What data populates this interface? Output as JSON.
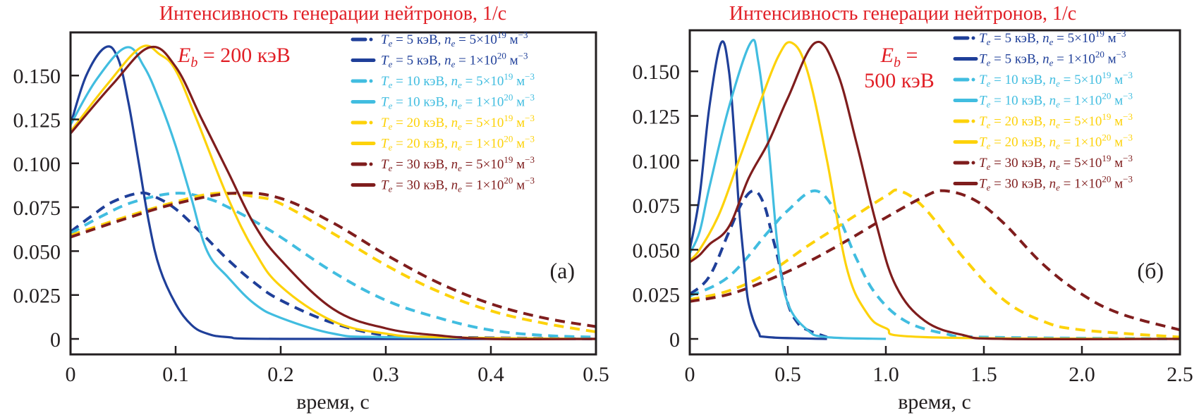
{
  "chart_data": [
    {
      "type": "line",
      "panel_label": "(а)",
      "title": "Интенсивность генерации нейтронов, 1/с",
      "annotation": "E_b = 200 кэВ",
      "annotation_parts": {
        "symbol": "E",
        "subscript": "b",
        "rest": " = 200 кэВ"
      },
      "xlabel": "время, с",
      "ylabel": "",
      "xlim": [
        0,
        0.5
      ],
      "ylim": [
        -0.017,
        0.175
      ],
      "xticks": [
        0,
        0.1,
        0.2,
        0.3,
        0.4,
        0.5
      ],
      "xtick_labels": [
        "0",
        "0.1",
        "0.2",
        "0.3",
        "0.4",
        "0.5"
      ],
      "yticks": [
        0,
        0.025,
        0.05,
        0.075,
        0.1,
        0.125,
        0.15
      ],
      "ytick_labels": [
        "0",
        "0.025",
        "0.050",
        "0.075",
        "0.100",
        "0.125",
        "0.150"
      ],
      "grid": false,
      "legend_position": "top-right",
      "series": [
        {
          "name": "Te = 5 кэВ, ne = 5×10^19 м^-3",
          "T": "5",
          "n_mant": "5",
          "n_exp": "19",
          "color": "#1f3f99",
          "dash": true,
          "x": [
            0,
            0.02,
            0.04,
            0.065,
            0.08,
            0.1,
            0.125,
            0.15,
            0.175,
            0.2,
            0.25,
            0.3,
            0.35,
            0.5
          ],
          "y": [
            0.061,
            0.07,
            0.078,
            0.083,
            0.081,
            0.074,
            0.06,
            0.045,
            0.032,
            0.022,
            0.009,
            0.002,
            0.001,
            0.0
          ]
        },
        {
          "name": "Te = 5 кэВ, ne = 1×10^20 м^-3",
          "T": "5",
          "n_mant": "1",
          "n_exp": "20",
          "color": "#1f3f99",
          "dash": false,
          "x": [
            0,
            0.015,
            0.033,
            0.045,
            0.055,
            0.065,
            0.075,
            0.085,
            0.1,
            0.115,
            0.13,
            0.15,
            0.2,
            0.5
          ],
          "y": [
            0.122,
            0.15,
            0.166,
            0.16,
            0.135,
            0.1,
            0.065,
            0.04,
            0.02,
            0.008,
            0.003,
            0.001,
            0.0,
            0.0
          ]
        },
        {
          "name": "Te = 10 кэВ, ne = 5×10^19 м^-3",
          "T": "10",
          "n_mant": "5",
          "n_exp": "19",
          "color": "#41bde0",
          "dash": true,
          "x": [
            0,
            0.03,
            0.06,
            0.1,
            0.13,
            0.15,
            0.175,
            0.2,
            0.25,
            0.3,
            0.35,
            0.4,
            0.45,
            0.5
          ],
          "y": [
            0.06,
            0.07,
            0.078,
            0.083,
            0.08,
            0.075,
            0.067,
            0.058,
            0.038,
            0.022,
            0.012,
            0.005,
            0.002,
            0.001
          ]
        },
        {
          "name": "Te = 10 кэВ, ne = 1×10^20 м^-3",
          "T": "10",
          "n_mant": "1",
          "n_exp": "20",
          "color": "#41bde0",
          "dash": false,
          "x": [
            0,
            0.025,
            0.053,
            0.07,
            0.085,
            0.1,
            0.115,
            0.13,
            0.15,
            0.175,
            0.2,
            0.25,
            0.3,
            0.5
          ],
          "y": [
            0.122,
            0.148,
            0.166,
            0.155,
            0.135,
            0.11,
            0.08,
            0.05,
            0.035,
            0.02,
            0.012,
            0.003,
            0.001,
            0.0
          ]
        },
        {
          "name": "Te = 20 кэВ, ne = 5×10^19 м^-3",
          "T": "20",
          "n_mant": "5",
          "n_exp": "19",
          "color": "#fdd20a",
          "dash": true,
          "x": [
            0,
            0.05,
            0.1,
            0.14,
            0.175,
            0.2,
            0.25,
            0.3,
            0.35,
            0.4,
            0.45,
            0.5
          ],
          "y": [
            0.059,
            0.069,
            0.078,
            0.083,
            0.081,
            0.077,
            0.06,
            0.042,
            0.027,
            0.016,
            0.009,
            0.004
          ]
        },
        {
          "name": "Te = 20 кэВ, ne = 1×10^20 м^-3",
          "T": "20",
          "n_mant": "1",
          "n_exp": "20",
          "color": "#fdd20a",
          "dash": false,
          "x": [
            0,
            0.035,
            0.067,
            0.085,
            0.1,
            0.12,
            0.15,
            0.175,
            0.2,
            0.25,
            0.3,
            0.35,
            0.5
          ],
          "y": [
            0.118,
            0.145,
            0.166,
            0.162,
            0.153,
            0.125,
            0.08,
            0.05,
            0.03,
            0.01,
            0.003,
            0.001,
            0.0
          ]
        },
        {
          "name": "Te = 30 кэВ, ne = 5×10^19 м^-3",
          "T": "30",
          "n_mant": "5",
          "n_exp": "19",
          "color": "#7f1d1d",
          "dash": true,
          "x": [
            0,
            0.05,
            0.1,
            0.155,
            0.2,
            0.25,
            0.3,
            0.35,
            0.4,
            0.45,
            0.5
          ],
          "y": [
            0.058,
            0.068,
            0.077,
            0.083,
            0.08,
            0.066,
            0.048,
            0.032,
            0.02,
            0.012,
            0.007
          ]
        },
        {
          "name": "Te = 30 кэВ, ne = 1×10^20 м^-3",
          "T": "30",
          "n_mant": "1",
          "n_exp": "20",
          "color": "#7f1d1d",
          "dash": false,
          "x": [
            0,
            0.04,
            0.075,
            0.1,
            0.125,
            0.15,
            0.175,
            0.2,
            0.25,
            0.3,
            0.35,
            0.4,
            0.5
          ],
          "y": [
            0.117,
            0.145,
            0.166,
            0.155,
            0.125,
            0.095,
            0.065,
            0.045,
            0.017,
            0.006,
            0.002,
            0.0,
            0.0
          ]
        }
      ]
    },
    {
      "type": "line",
      "panel_label": "(б)",
      "title": "Интенсивность генерации нейтронов, 1/с",
      "annotation": "E_b = 500 кэВ",
      "annotation_parts": {
        "symbol": "E",
        "subscript": "b",
        "rest": " =",
        "line2": "500 кэВ"
      },
      "xlabel": "время, с",
      "ylabel": "",
      "xlim": [
        0,
        2.5
      ],
      "ylim": [
        -0.017,
        0.175
      ],
      "xticks": [
        0,
        0.5,
        1.0,
        1.5,
        2.0,
        2.5
      ],
      "xtick_labels": [
        "0",
        "0.5",
        "1.0",
        "1.5",
        "2.0",
        "2.5"
      ],
      "yticks": [
        0,
        0.025,
        0.05,
        0.075,
        0.1,
        0.125,
        0.15
      ],
      "ytick_labels": [
        "0",
        "0.025",
        "0.050",
        "0.075",
        "0.100",
        "0.125",
        "0.150"
      ],
      "grid": false,
      "legend_position": "top-right",
      "series": [
        {
          "name": "Te = 5 кэВ, ne = 5×10^19 м^-3",
          "T": "5",
          "n_mant": "5",
          "n_exp": "19",
          "color": "#1f3f99",
          "dash": true,
          "x": [
            0,
            0.1,
            0.2,
            0.27,
            0.33,
            0.38,
            0.42,
            0.45,
            0.5,
            0.55,
            0.6,
            0.7
          ],
          "y": [
            0.025,
            0.035,
            0.06,
            0.077,
            0.083,
            0.075,
            0.058,
            0.045,
            0.02,
            0.009,
            0.005,
            0.001
          ]
        },
        {
          "name": "Te = 5 кэВ, ne = 1×10^20 м^-3",
          "T": "5",
          "n_mant": "1",
          "n_exp": "20",
          "color": "#1f3f99",
          "dash": false,
          "x": [
            0,
            0.05,
            0.1,
            0.16,
            0.2,
            0.23,
            0.25,
            0.28,
            0.3,
            0.35,
            0.4,
            0.7
          ],
          "y": [
            0.05,
            0.08,
            0.13,
            0.166,
            0.15,
            0.11,
            0.075,
            0.04,
            0.02,
            0.004,
            0.001,
            0.0
          ]
        },
        {
          "name": "Te = 10 кэВ, ne = 5×10^19 м^-3",
          "T": "10",
          "n_mant": "5",
          "n_exp": "19",
          "color": "#41bde0",
          "dash": true,
          "x": [
            0,
            0.2,
            0.4,
            0.5,
            0.64,
            0.75,
            0.85,
            0.95,
            1.1,
            1.3,
            1.5,
            2.5
          ],
          "y": [
            0.024,
            0.035,
            0.06,
            0.072,
            0.083,
            0.07,
            0.045,
            0.025,
            0.01,
            0.003,
            0.001,
            0.0
          ]
        },
        {
          "name": "Te = 10 кэВ, ne = 1×10^20 м^-3",
          "T": "10",
          "n_mant": "1",
          "n_exp": "20",
          "color": "#41bde0",
          "dash": false,
          "x": [
            0,
            0.05,
            0.1,
            0.2,
            0.31,
            0.35,
            0.4,
            0.45,
            0.5,
            0.6,
            0.7,
            1.0
          ],
          "y": [
            0.048,
            0.06,
            0.085,
            0.13,
            0.166,
            0.155,
            0.11,
            0.05,
            0.02,
            0.005,
            0.001,
            0.0
          ]
        },
        {
          "name": "Te = 20 кэВ, ne = 5×10^19 м^-3",
          "T": "20",
          "n_mant": "5",
          "n_exp": "19",
          "color": "#fdd20a",
          "dash": true,
          "x": [
            0,
            0.2,
            0.4,
            0.6,
            0.8,
            1.0,
            1.07,
            1.2,
            1.4,
            1.6,
            1.8,
            2.0,
            2.5
          ],
          "y": [
            0.022,
            0.027,
            0.037,
            0.052,
            0.066,
            0.08,
            0.083,
            0.073,
            0.045,
            0.022,
            0.01,
            0.005,
            0.001
          ]
        },
        {
          "name": "Te = 20 кэВ, ne = 1×10^20 м^-3",
          "T": "20",
          "n_mant": "1",
          "n_exp": "20",
          "color": "#fdd20a",
          "dash": false,
          "x": [
            0,
            0.05,
            0.15,
            0.25,
            0.35,
            0.45,
            0.52,
            0.6,
            0.7,
            0.8,
            0.9,
            1.0,
            1.2,
            2.5
          ],
          "y": [
            0.044,
            0.05,
            0.07,
            0.1,
            0.13,
            0.158,
            0.166,
            0.15,
            0.1,
            0.04,
            0.015,
            0.006,
            0.001,
            0.0
          ]
        },
        {
          "name": "Te = 30 кэВ, ne = 5×10^19 м^-3",
          "T": "30",
          "n_mant": "5",
          "n_exp": "19",
          "color": "#7f1d1d",
          "dash": true,
          "x": [
            0,
            0.2,
            0.4,
            0.6,
            0.8,
            1.0,
            1.2,
            1.3,
            1.45,
            1.6,
            1.8,
            2.0,
            2.2,
            2.5
          ],
          "y": [
            0.021,
            0.025,
            0.033,
            0.043,
            0.055,
            0.068,
            0.08,
            0.083,
            0.078,
            0.065,
            0.042,
            0.025,
            0.014,
            0.005
          ]
        },
        {
          "name": "Te = 30 кэВ, ne = 1×10^20 м^-3",
          "T": "30",
          "n_mant": "1",
          "n_exp": "20",
          "color": "#7f1d1d",
          "dash": false,
          "x": [
            0,
            0.05,
            0.1,
            0.2,
            0.3,
            0.4,
            0.5,
            0.64,
            0.75,
            0.85,
            0.95,
            1.05,
            1.2,
            1.4,
            1.6,
            2.5
          ],
          "y": [
            0.043,
            0.047,
            0.053,
            0.063,
            0.09,
            0.11,
            0.135,
            0.166,
            0.15,
            0.11,
            0.065,
            0.03,
            0.01,
            0.002,
            0.0,
            0.0
          ]
        }
      ]
    }
  ]
}
